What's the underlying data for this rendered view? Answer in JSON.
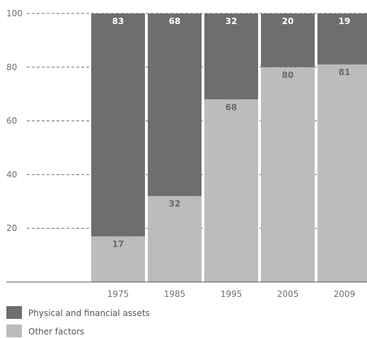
{
  "chart_data": {
    "type": "bar",
    "stacked": true,
    "categories": [
      "1975",
      "1985",
      "1995",
      "2005",
      "2009"
    ],
    "series": [
      {
        "name": "Other factors",
        "values": [
          17,
          32,
          68,
          80,
          81
        ],
        "color": "#bcbcbc",
        "label_color": "#6a6a6a"
      },
      {
        "name": "Physical and financial assets",
        "values": [
          83,
          68,
          32,
          20,
          19
        ],
        "color": "#6e6e6e",
        "label_color": "#ffffff"
      }
    ],
    "y_ticks": [
      "20",
      "40",
      "60",
      "80",
      "100"
    ],
    "ylim": [
      0,
      100
    ],
    "grid": "dashed",
    "legend": "bottom-left"
  }
}
